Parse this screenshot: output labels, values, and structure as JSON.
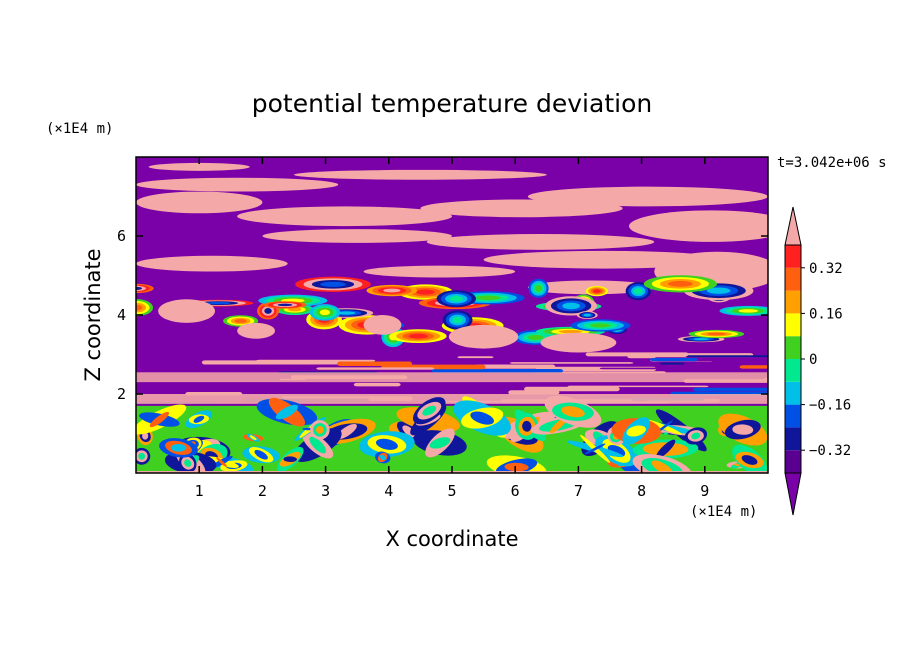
{
  "chart_data": {
    "type": "heatmap",
    "title": "potential temperature deviation",
    "xlabel": "X coordinate",
    "ylabel": "Z coordinate",
    "x_unit": "(×1E4 m)",
    "y_unit": "(×1E4 m)",
    "time_label": "t=3.042e+06 s",
    "xlim": [
      0,
      10
    ],
    "ylim": [
      0,
      8
    ],
    "x_ticks": [
      1,
      2,
      3,
      4,
      5,
      6,
      7,
      8,
      9
    ],
    "y_ticks": [
      2,
      4,
      6
    ],
    "colorbar": {
      "levels": [
        -0.4,
        -0.32,
        -0.24,
        -0.16,
        -0.08,
        0,
        0.08,
        0.16,
        0.24,
        0.32,
        0.4
      ],
      "colors": [
        "#5a0090",
        "#10169a",
        "#0050e6",
        "#00c0e8",
        "#00e890",
        "#40d020",
        "#ffff00",
        "#ffa000",
        "#ff6010",
        "#ff2020",
        "#f4a8a8",
        "#7a00a8"
      ],
      "tick_labels": [
        "0.32",
        "0.16",
        "0",
        "−0.16",
        "−0.32"
      ],
      "tick_values": [
        0.32,
        0.16,
        0,
        -0.16,
        -0.32
      ],
      "extend": "both",
      "under_color": "#7a00a8",
      "over_color": "#f4a8a8"
    },
    "regions": {
      "upper_band_z": [
        3.0,
        8.0
      ],
      "mixed_band_z": [
        1.7,
        3.0
      ],
      "lower_turbulent_z": [
        0,
        1.7
      ]
    }
  }
}
